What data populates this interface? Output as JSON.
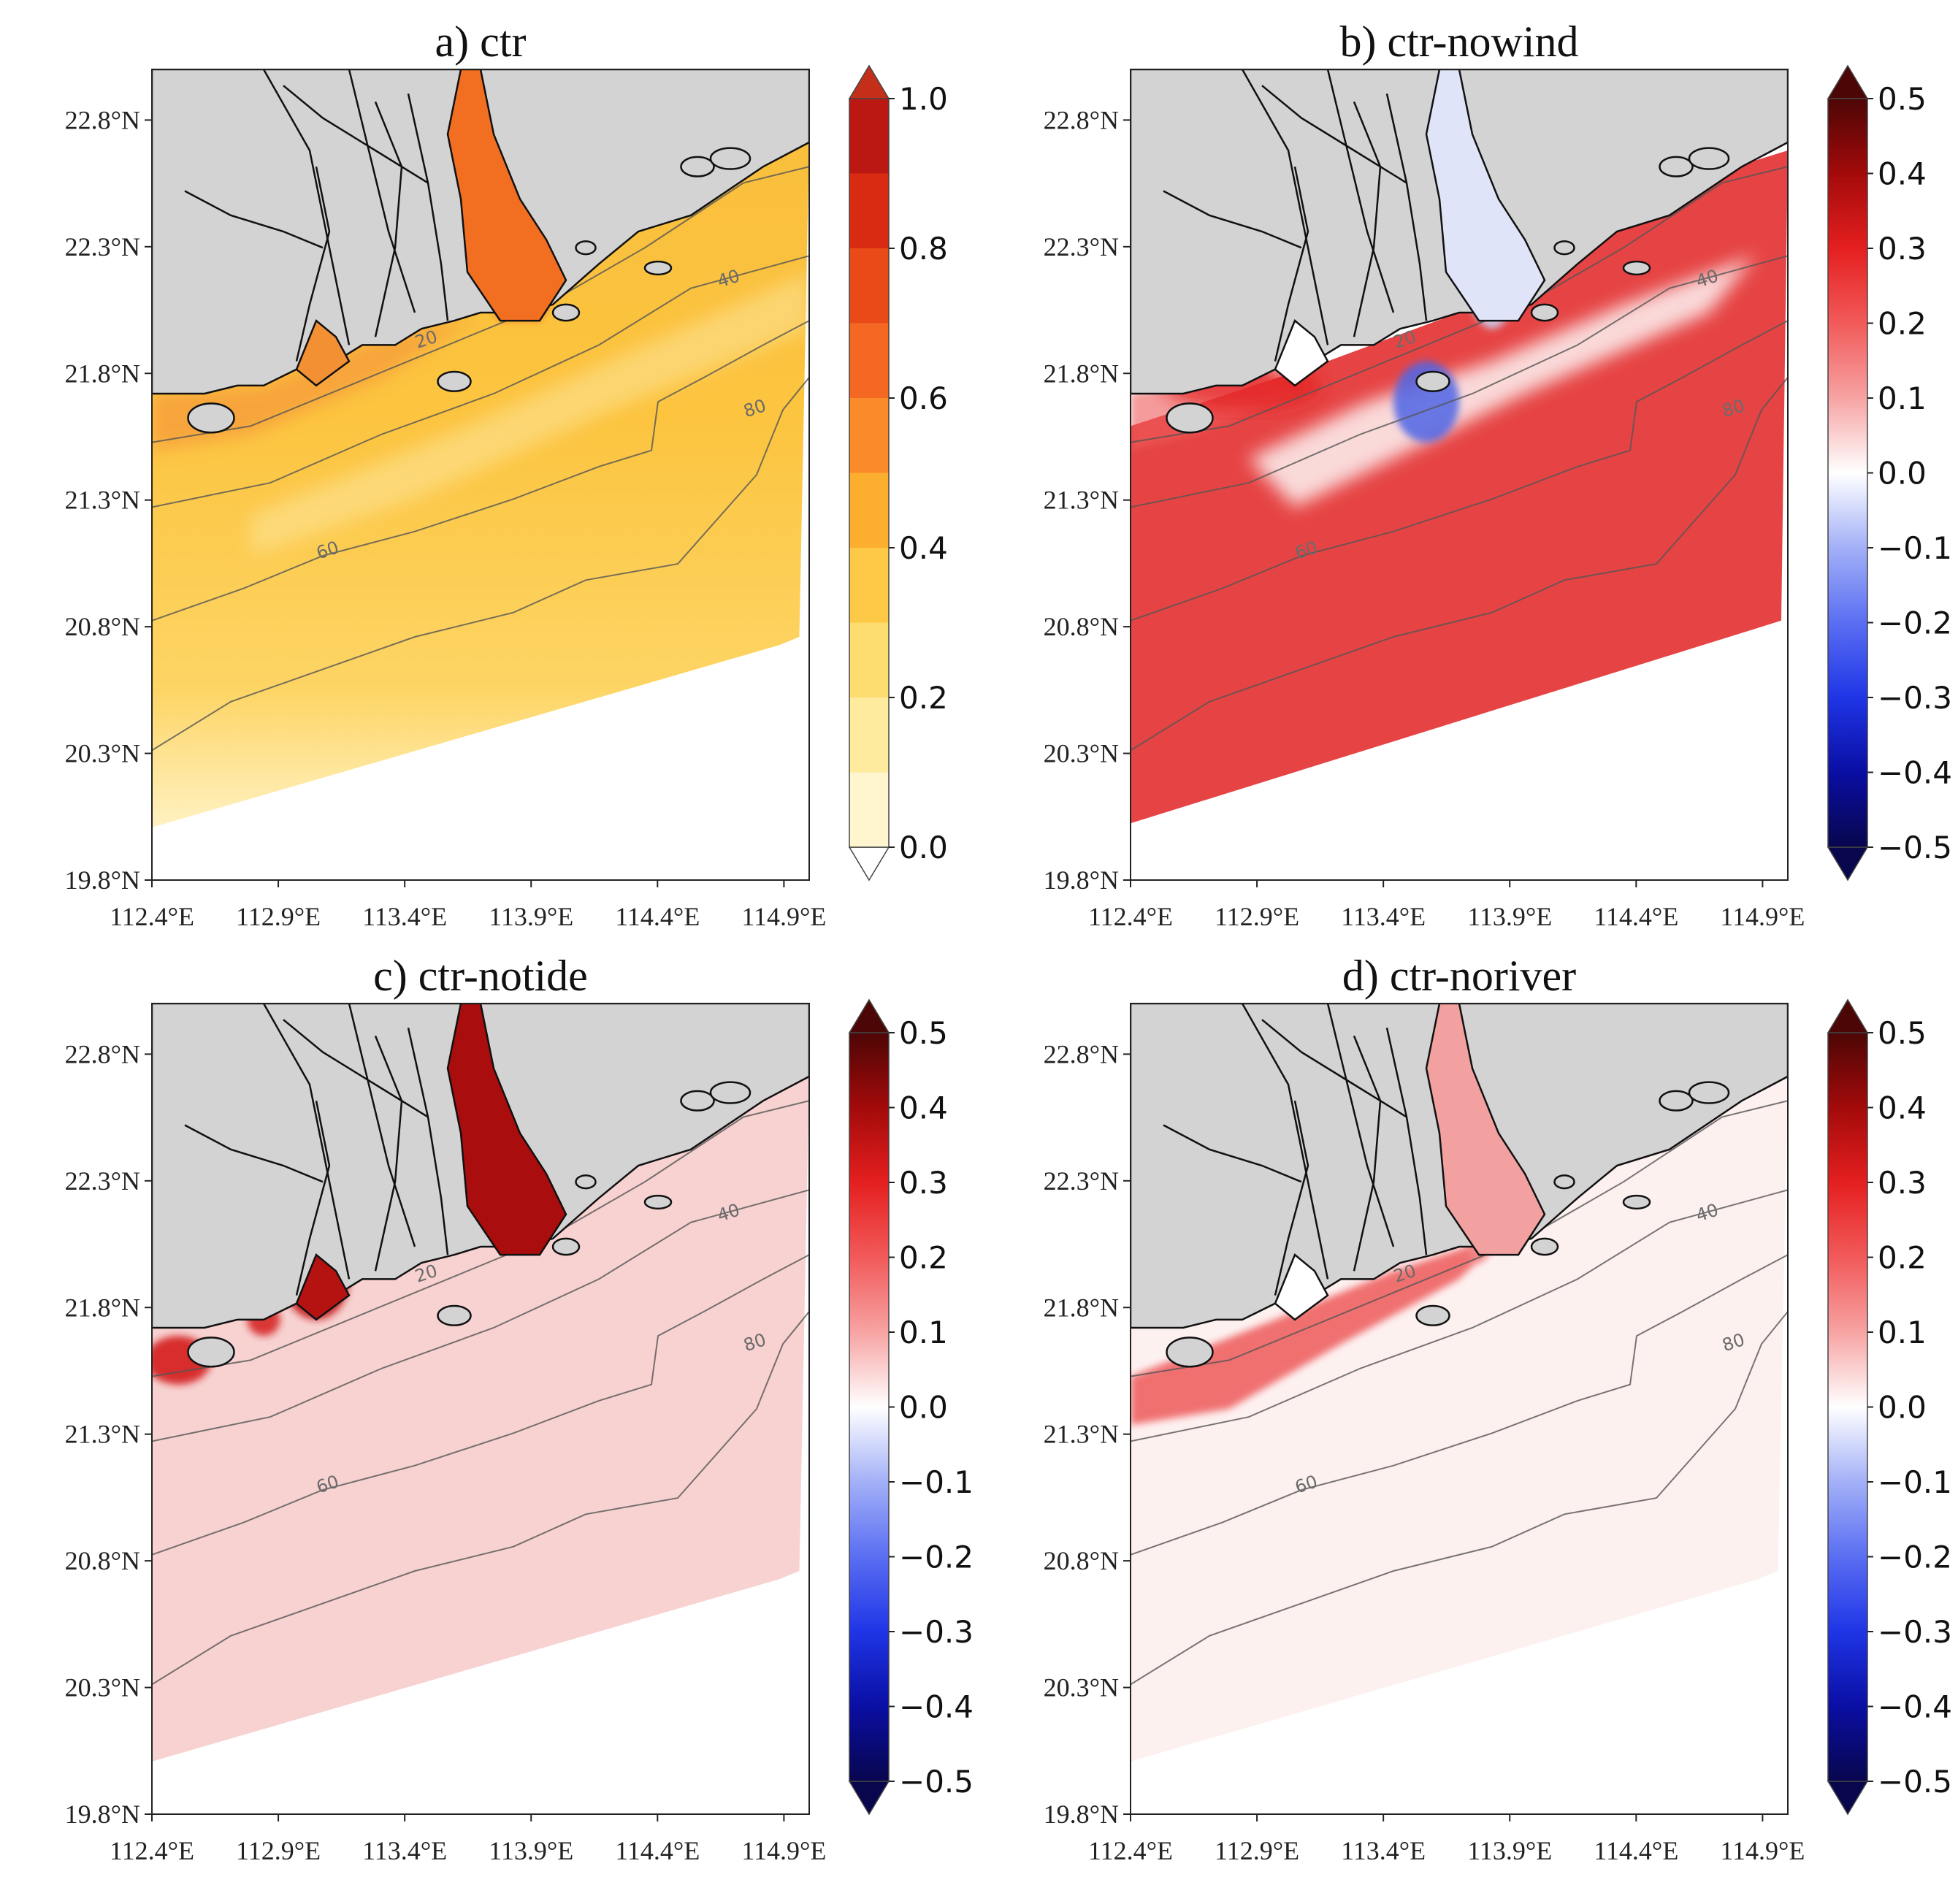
{
  "figure": {
    "panels": [
      {
        "id": "a",
        "title": "a) ctr",
        "scale": "seq"
      },
      {
        "id": "b",
        "title": "b) ctr-nowind",
        "scale": "div",
        "pattern": "nowind"
      },
      {
        "id": "c",
        "title": "c) ctr-notide",
        "scale": "div",
        "pattern": "notide"
      },
      {
        "id": "d",
        "title": "d) ctr-noriver",
        "scale": "div",
        "pattern": "noriver"
      }
    ],
    "lon_ticks": [
      "112.4°E",
      "112.9°E",
      "113.4°E",
      "113.9°E",
      "114.4°E",
      "114.9°E"
    ],
    "lat_ticks": [
      "22.8°N",
      "22.3°N",
      "21.8°N",
      "21.3°N",
      "20.8°N",
      "20.3°N",
      "19.8°N"
    ],
    "contour_labels": [
      "20",
      "40",
      "60",
      "80"
    ],
    "colorbar_seq": {
      "ticks": [
        "1.0",
        "0.8",
        "0.6",
        "0.4",
        "0.2",
        "0.0"
      ],
      "colors": [
        "#fff6d0",
        "#feeb9e",
        "#fddc70",
        "#fdc946",
        "#fcaf2f",
        "#fb8a2a",
        "#f46823",
        "#ea4a17",
        "#d92a12",
        "#bc1813"
      ]
    },
    "colorbar_div": {
      "ticks": [
        "0.5",
        "0.4",
        "0.3",
        "0.2",
        "0.1",
        "0.0",
        "−0.1",
        "−0.2",
        "−0.3",
        "−0.4",
        "−0.5"
      ],
      "colors": [
        "#08064d",
        "#0a0ea3",
        "#1f35e6",
        "#5a6ef2",
        "#a3b0f7",
        "#ffffff",
        "#f7a3a3",
        "#f25a5a",
        "#e51f1f",
        "#a30a0a",
        "#4d0606"
      ]
    },
    "land_color": "#d3d3d3"
  },
  "chart_data": [
    {
      "type": "heatmap",
      "title": "a) ctr",
      "xlabel": "",
      "ylabel": "",
      "xlim": [
        112.4,
        115.0
      ],
      "ylim": [
        19.8,
        23.0
      ],
      "x_ticks": [
        112.4,
        112.9,
        113.4,
        113.9,
        114.4,
        114.9
      ],
      "y_ticks": [
        19.8,
        20.3,
        20.8,
        21.3,
        21.8,
        22.3,
        22.8
      ],
      "colorbar": {
        "min": 0.0,
        "max": 1.0,
        "ticks": [
          0.0,
          0.2,
          0.4,
          0.6,
          0.8,
          1.0
        ]
      },
      "isobath_labels_m": [
        20,
        40,
        60,
        80
      ]
    },
    {
      "type": "heatmap",
      "title": "b) ctr-nowind",
      "xlabel": "",
      "ylabel": "",
      "xlim": [
        112.4,
        115.0
      ],
      "ylim": [
        19.8,
        23.0
      ],
      "x_ticks": [
        112.4,
        112.9,
        113.4,
        113.9,
        114.4,
        114.9
      ],
      "y_ticks": [
        19.8,
        20.3,
        20.8,
        21.3,
        21.8,
        22.3,
        22.8
      ],
      "colorbar": {
        "min": -0.5,
        "max": 0.5,
        "ticks": [
          -0.5,
          -0.4,
          -0.3,
          -0.2,
          -0.1,
          0.0,
          0.1,
          0.2,
          0.3,
          0.4,
          0.5
        ]
      },
      "isobath_labels_m": [
        20,
        40,
        60,
        80
      ]
    },
    {
      "type": "heatmap",
      "title": "c) ctr-notide",
      "xlabel": "",
      "ylabel": "",
      "xlim": [
        112.4,
        115.0
      ],
      "ylim": [
        19.8,
        23.0
      ],
      "x_ticks": [
        112.4,
        112.9,
        113.4,
        113.9,
        114.4,
        114.9
      ],
      "y_ticks": [
        19.8,
        20.3,
        20.8,
        21.3,
        21.8,
        22.3,
        22.8
      ],
      "colorbar": {
        "min": -0.5,
        "max": 0.5,
        "ticks": [
          -0.5,
          -0.4,
          -0.3,
          -0.2,
          -0.1,
          0.0,
          0.1,
          0.2,
          0.3,
          0.4,
          0.5
        ]
      },
      "isobath_labels_m": [
        20,
        40,
        60,
        80
      ]
    },
    {
      "type": "heatmap",
      "title": "d) ctr-noriver",
      "xlabel": "",
      "ylabel": "",
      "xlim": [
        112.4,
        115.0
      ],
      "ylim": [
        19.8,
        23.0
      ],
      "x_ticks": [
        112.4,
        112.9,
        113.4,
        113.9,
        114.4,
        114.9
      ],
      "y_ticks": [
        19.8,
        20.3,
        20.8,
        21.3,
        21.8,
        22.3,
        22.8
      ],
      "colorbar": {
        "min": -0.5,
        "max": 0.5,
        "ticks": [
          -0.5,
          -0.4,
          -0.3,
          -0.2,
          -0.1,
          0.0,
          0.1,
          0.2,
          0.3,
          0.4,
          0.5
        ]
      },
      "isobath_labels_m": [
        20,
        40,
        60,
        80
      ]
    }
  ]
}
